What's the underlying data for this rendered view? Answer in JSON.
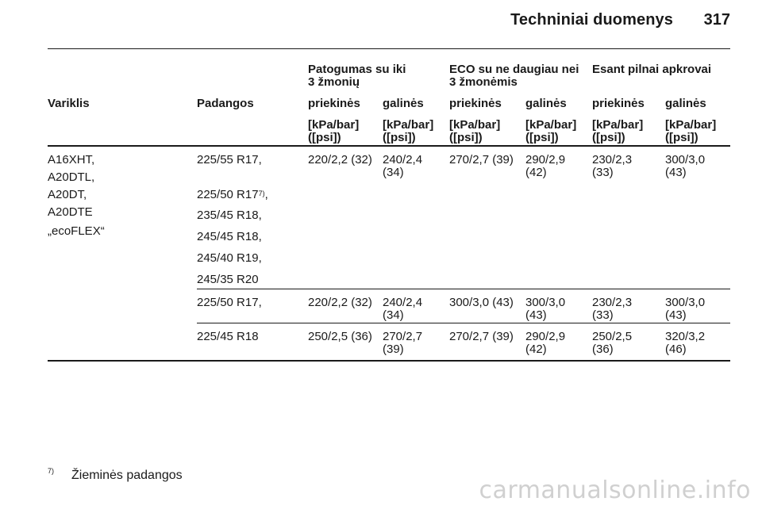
{
  "header": {
    "title": "Techniniai duomenys",
    "page_number": "317"
  },
  "table": {
    "group_headers": [
      "Patogumas su iki\n3 žmonių",
      "ECO su ne daugiau nei\n3 žmonėmis",
      "Esant pilnai apkrovai"
    ],
    "column_headers": [
      "Variklis",
      "Padangos",
      "priekinės",
      "galinės",
      "priekinės",
      "galinės",
      "priekinės",
      "galinės"
    ],
    "unit": "[kPa/bar]\n([psi])",
    "engines": [
      "A16XHT,",
      "A20DTL,",
      "A20DT,",
      "A20DTE",
      "„ecoFLEX“"
    ],
    "group1": {
      "tyres": [
        "225/55 R17,",
        "225/50 R17",
        "235/45 R18,",
        "245/45 R18,",
        "245/40 R19,",
        "245/35 R20"
      ],
      "tyre_footnote": "7)",
      "tyre_suffix": ",",
      "values": [
        "220/2,2 (32)",
        "240/2,4\n(34)",
        "270/2,7 (39)",
        "290/2,9\n(42)",
        "230/2,3\n(33)",
        "300/3,0\n(43)"
      ]
    },
    "group2": {
      "tyre": "225/50 R17,",
      "values": [
        "220/2,2 (32)",
        "240/2,4\n(34)",
        "300/3,0 (43)",
        "300/3,0\n(43)",
        "230/2,3\n(33)",
        "300/3,0\n(43)"
      ]
    },
    "group3": {
      "tyre": "225/45 R18",
      "values": [
        "250/2,5 (36)",
        "270/2,7\n(39)",
        "270/2,7 (39)",
        "290/2,9\n(42)",
        "250/2,5\n(36)",
        "320/3,2\n(46)"
      ]
    }
  },
  "footnote": {
    "mark": "7)",
    "text": "Žieminės padangos"
  },
  "watermark": "carmanualsonline.info"
}
